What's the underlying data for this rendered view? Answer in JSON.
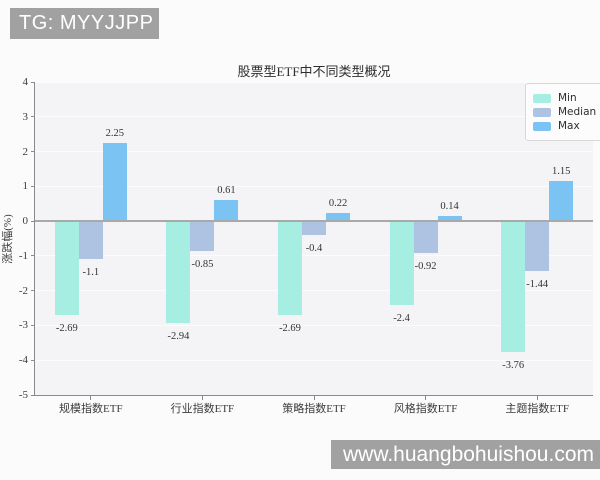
{
  "watermarks": {
    "top_left": "TG: MYYJJPP",
    "bottom_right": "www.huangbohuishou.com"
  },
  "chart_data": {
    "type": "bar",
    "title": "股票型ETF中不同类型概况",
    "xlabel": "",
    "ylabel": "涨跌幅(%)",
    "categories": [
      "规模指数ETF",
      "行业指数ETF",
      "策略指数ETF",
      "风格指数ETF",
      "主题指数ETF"
    ],
    "series": [
      {
        "name": "Min",
        "color": "#a6ede2",
        "values": [
          -2.69,
          -2.94,
          -2.69,
          -2.4,
          -3.76
        ],
        "labels": [
          "-2.69",
          "-2.94",
          "-2.69",
          "-2.4",
          "-3.76"
        ]
      },
      {
        "name": "Median",
        "color": "#aec2e2",
        "values": [
          -1.1,
          -0.85,
          -0.4,
          -0.92,
          -1.44
        ],
        "labels": [
          "-1.1",
          "-0.85",
          "-0.4",
          "-0.92",
          "-1.44"
        ]
      },
      {
        "name": "Max",
        "color": "#7ac3f2",
        "values": [
          2.25,
          0.61,
          0.22,
          0.14,
          1.15
        ],
        "labels": [
          "2.25",
          "0.61",
          "0.22",
          "0.14",
          "1.15"
        ]
      }
    ],
    "ylim": [
      -5,
      4
    ],
    "yticks": [
      4,
      3,
      2,
      1,
      0,
      -1,
      -2,
      -3,
      -4,
      -5
    ],
    "legend": {
      "position": "upper right",
      "entries": [
        "Min",
        "Median",
        "Max"
      ]
    },
    "grid": false,
    "panel_bg": "#f4f4f6",
    "zero_line_color": "#a9a9a9",
    "spine_color": "#8a8a8a"
  }
}
